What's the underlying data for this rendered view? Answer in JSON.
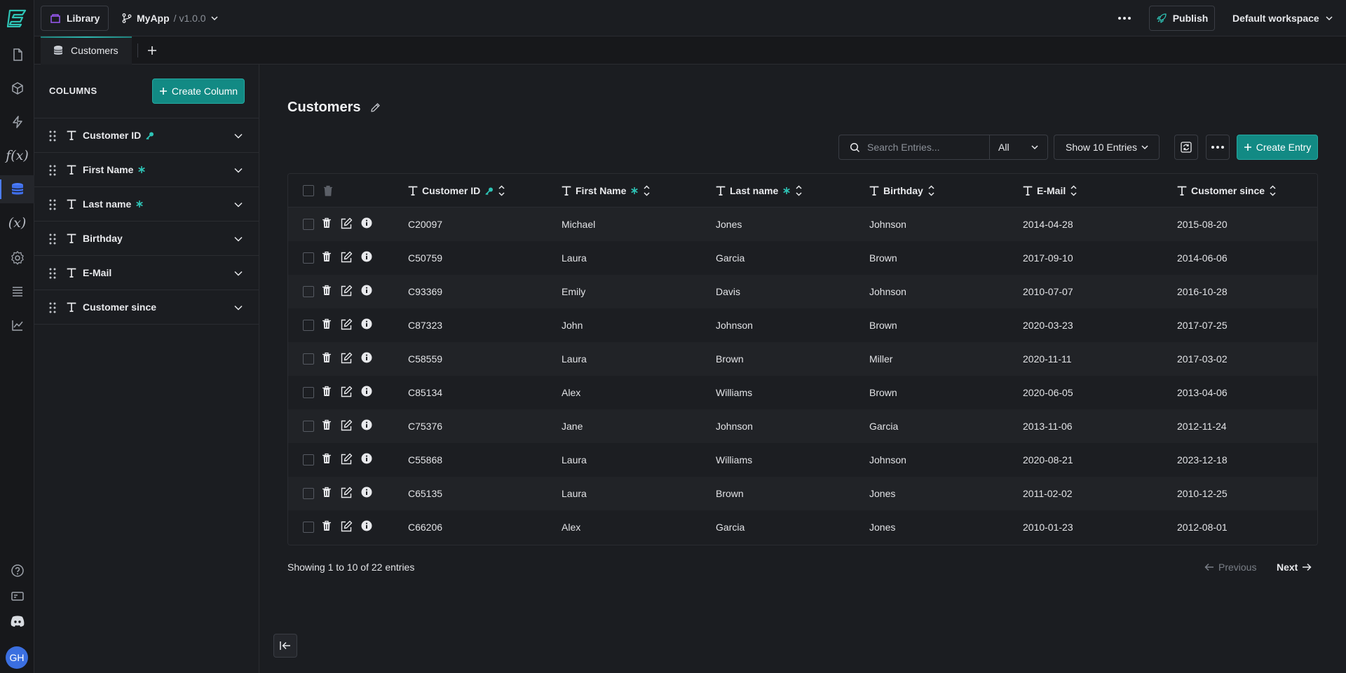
{
  "topbar": {
    "library_label": "Library",
    "app_name": "MyApp",
    "app_version": "/ v1.0.0",
    "publish_label": "Publish",
    "workspace_label": "Default workspace"
  },
  "tabs": [
    {
      "label": "Customers"
    }
  ],
  "columns_panel": {
    "title": "COLUMNS",
    "create_label": "Create Column",
    "columns": [
      {
        "name": "Customer ID",
        "marker": "key"
      },
      {
        "name": "First Name",
        "marker": "required"
      },
      {
        "name": "Last name",
        "marker": "required"
      },
      {
        "name": "Birthday",
        "marker": ""
      },
      {
        "name": "E-Mail",
        "marker": ""
      },
      {
        "name": "Customer since",
        "marker": ""
      }
    ]
  },
  "main": {
    "title": "Customers",
    "search_placeholder": "Search Entries...",
    "filter_value": "All",
    "show_value": "Show 10 Entries",
    "create_entry_label": "Create Entry"
  },
  "table": {
    "headers": [
      "Customer ID",
      "First Name",
      "Last name",
      "Birthday",
      "E-Mail",
      "Customer since"
    ],
    "rows": [
      [
        "C20097",
        "Michael",
        "Jones",
        "Johnson",
        "2014-04-28",
        "2015-08-20"
      ],
      [
        "C50759",
        "Laura",
        "Garcia",
        "Brown",
        "2017-09-10",
        "2014-06-06"
      ],
      [
        "C93369",
        "Emily",
        "Davis",
        "Johnson",
        "2010-07-07",
        "2016-10-28"
      ],
      [
        "C87323",
        "John",
        "Johnson",
        "Brown",
        "2020-03-23",
        "2017-07-25"
      ],
      [
        "C58559",
        "Laura",
        "Brown",
        "Miller",
        "2020-11-11",
        "2017-03-02"
      ],
      [
        "C85134",
        "Alex",
        "Williams",
        "Brown",
        "2020-06-05",
        "2013-04-06"
      ],
      [
        "C75376",
        "Jane",
        "Johnson",
        "Garcia",
        "2013-11-06",
        "2012-11-24"
      ],
      [
        "C55868",
        "Laura",
        "Williams",
        "Johnson",
        "2020-08-21",
        "2023-12-18"
      ],
      [
        "C65135",
        "Laura",
        "Brown",
        "Jones",
        "2011-02-02",
        "2010-12-25"
      ],
      [
        "C66206",
        "Alex",
        "Garcia",
        "Jones",
        "2010-01-23",
        "2012-08-01"
      ]
    ]
  },
  "pagination": {
    "summary": "Showing 1 to 10 of 22 entries",
    "previous_label": "Previous",
    "next_label": "Next"
  },
  "user": {
    "initials": "GH"
  },
  "colors": {
    "accent": "#128a84",
    "accent_icon": "#2ec4b6",
    "background": "#1b1d21",
    "rail": "#17181b",
    "library_icon": "#9b59f5",
    "avatar": "#3b6fe0"
  },
  "icons": {
    "rail": [
      "logo",
      "pages-icon",
      "cube-icon",
      "bolt-icon",
      "function-icon",
      "database-icon",
      "variable-icon",
      "gear-icon",
      "list-icon",
      "chart-icon",
      "help-icon",
      "ticket-icon",
      "discord-icon"
    ]
  }
}
